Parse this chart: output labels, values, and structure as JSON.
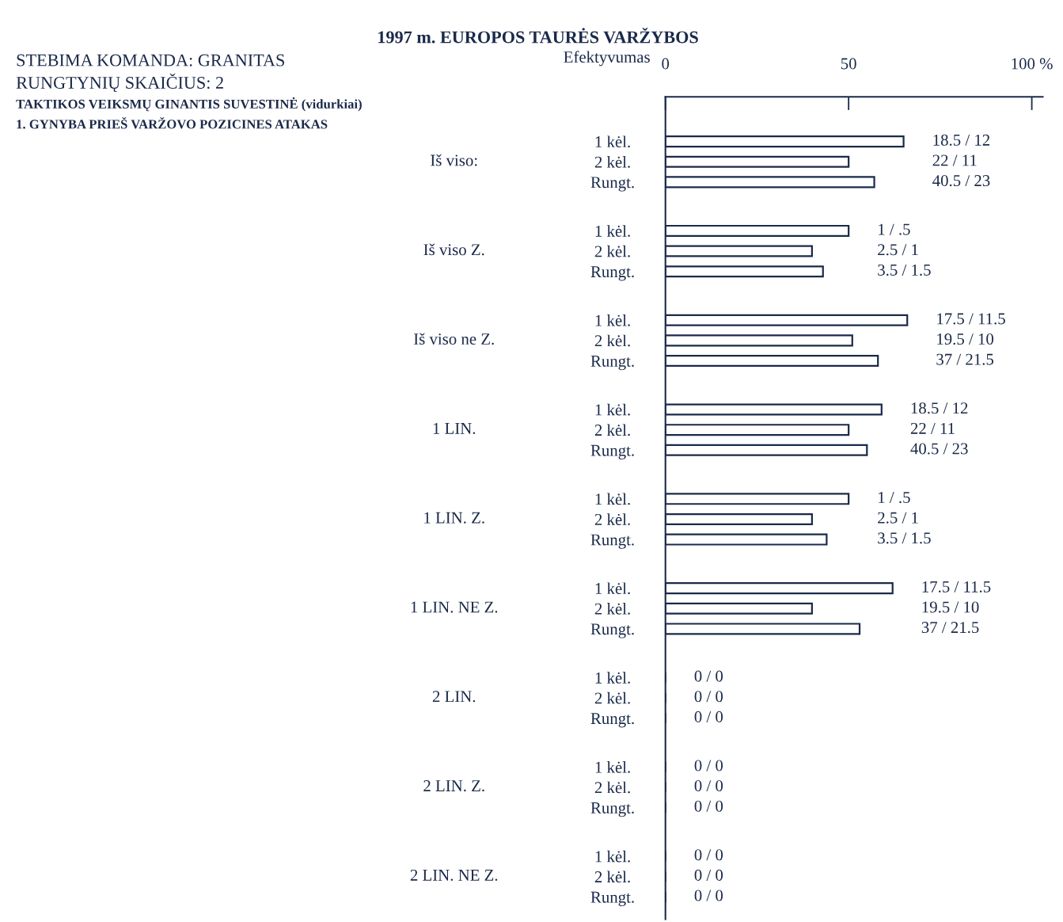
{
  "chart_data": {
    "type": "bar",
    "orientation": "horizontal",
    "title": "1997 m. EUROPOS TAURĖS VARŽYBOS",
    "xlabel": "Efektyvumas",
    "annotations": [
      "STEBIMA KOMANDA: GRANITAS",
      "RUNGTYNIŲ SKAIČIUS: 2",
      "TAKTIKOS VEIKSMŲ GINANTIS SUVESTINĖ (vidurkiai)",
      "1. GYNYBA PRIEŠ VARŽOVO POZICINES ATAKAS",
      "Iš viso:",
      "Iš viso Z.",
      "Iš viso ne Z.",
      "1 LIN.",
      "1 LIN. Z.",
      "1 LIN. NE Z.",
      "2 LIN.",
      "2 LIN. Z.",
      "2 LIN. NE Z.",
      "18.5 / 12",
      "22 / 11",
      "40.5 / 23",
      "1 / .5",
      "2.5 / 1",
      "3.5 / 1.5",
      "17.5 / 11.5",
      "19.5 / 10",
      "37 / 21.5",
      "18.5 / 12",
      "22 / 11",
      "40.5 / 23",
      "1 / .5",
      "2.5 / 1",
      "3.5 / 1.5",
      "17.5 / 11.5",
      "19.5 / 10",
      "37 / 21.5",
      "0 / 0",
      "0 / 0",
      "0 / 0",
      "0 / 0",
      "0 / 0",
      "0 / 0",
      "0 / 0",
      "0 / 0",
      "0 / 0"
    ],
    "categories": [
      "1 kėl.",
      "2 kėl.",
      "Rungt.",
      "1 kėl.",
      "2 kėl.",
      "Rungt.",
      "1 kėl.",
      "2 kėl.",
      "Rungt.",
      "1 kėl.",
      "2 kėl.",
      "Rungt.",
      "1 kėl.",
      "2 kėl.",
      "Rungt.",
      "1 kėl.",
      "2 kėl.",
      "Rungt.",
      "1 kėl.",
      "2 kėl.",
      "Rungt.",
      "1 kėl.",
      "2 kėl.",
      "Rungt.",
      "1 kėl.",
      "2 kėl.",
      "Rungt."
    ],
    "values": [
      65,
      50,
      57,
      50,
      40,
      43,
      66,
      51,
      58,
      59,
      50,
      55,
      50,
      40,
      44,
      62,
      40,
      53,
      0,
      0,
      0,
      0,
      0,
      0,
      0,
      0,
      0
    ],
    "color": "#1b2a4a",
    "xlim": [
      0,
      103
    ],
    "xticks": [
      0,
      50,
      {
        "value": 100,
        "label": "100 %"
      }
    ]
  }
}
